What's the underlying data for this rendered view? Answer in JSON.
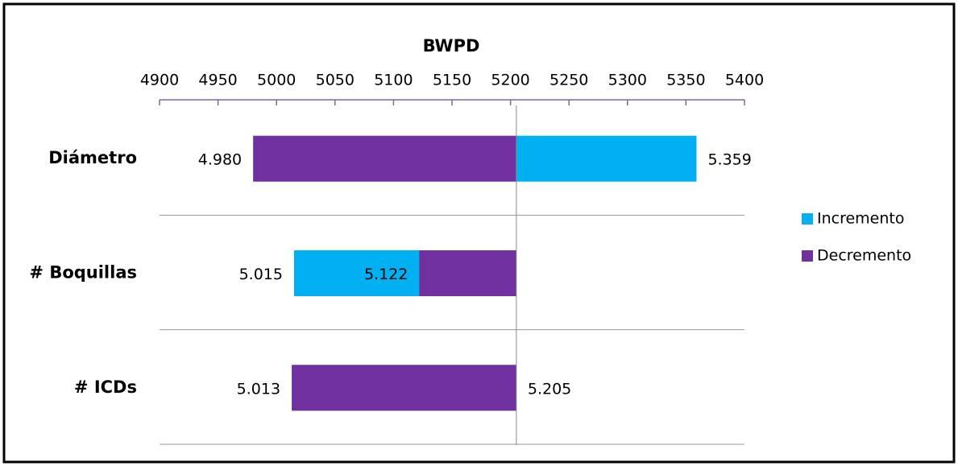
{
  "chart_data": {
    "type": "tornado",
    "title": "BWPD",
    "categories": [
      "Diámetro",
      "# Boquillas",
      "# ICDs"
    ],
    "series": [
      {
        "name": "Incremento",
        "color": "#00b0f0",
        "values": [
          5359,
          5015,
          5205
        ],
        "value_labels": [
          "5.359",
          "5.015",
          "5.205"
        ]
      },
      {
        "name": "Decremento",
        "color": "#7030a0",
        "values": [
          4980,
          5122,
          5013
        ],
        "value_labels": [
          "4.980",
          "5.122",
          "5.013"
        ]
      }
    ],
    "x_axis_crosses": 5205,
    "xlim": [
      4900,
      5400
    ],
    "xticks": [
      4900,
      4950,
      5000,
      5050,
      5100,
      5150,
      5200,
      5250,
      5300,
      5350,
      5400
    ],
    "legend": "right"
  }
}
